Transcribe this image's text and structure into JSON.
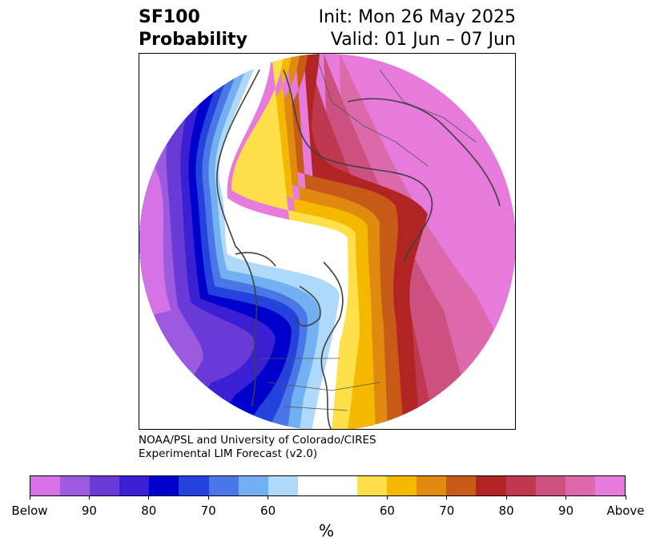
{
  "header": {
    "title_line1": "SF100",
    "title_line2": "Probability",
    "init_text": "Init: Mon 26 May 2025",
    "valid_text": "Valid: 01 Jun – 07 Jun"
  },
  "credit": {
    "line1": "NOAA/PSL and University of Colorado/CIRES",
    "line2": "Experimental LIM Forecast (v2.0)"
  },
  "colorbar": {
    "unit": "%",
    "colors": [
      "#d472e6",
      "#9b5ae0",
      "#6a3ad6",
      "#3b1fd2",
      "#0000cc",
      "#2442dc",
      "#4a76e8",
      "#72b0f2",
      "#aed9fa",
      "#ffffff",
      "#ffffff",
      "#ffe04a",
      "#f5b800",
      "#e08a10",
      "#c85a18",
      "#b02424",
      "#c03850",
      "#cc5080",
      "#dc6aaa",
      "#e67bdc"
    ],
    "tick_labels": [
      "Below",
      "90",
      "80",
      "70",
      "60",
      "60",
      "70",
      "80",
      "90",
      "Above"
    ]
  }
}
